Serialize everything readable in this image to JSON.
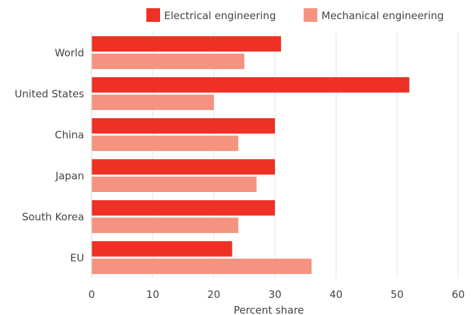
{
  "chart_data": {
    "type": "bar",
    "orientation": "horizontal",
    "title": "",
    "xlabel": "Percent share",
    "ylabel": "",
    "xlim": [
      0,
      60
    ],
    "xticks": [
      0,
      10,
      20,
      30,
      40,
      50,
      60
    ],
    "grid": "vertical",
    "legend_position": "top",
    "categories": [
      "World",
      "United States",
      "China",
      "Japan",
      "South Korea",
      "EU"
    ],
    "series": [
      {
        "name": "Electrical engineering",
        "color": "#ee3124",
        "values": [
          31,
          52,
          30,
          30,
          30,
          23
        ]
      },
      {
        "name": "Mechanical engineering",
        "color": "#f59380",
        "values": [
          25,
          20,
          24,
          27,
          24,
          36
        ]
      }
    ]
  }
}
